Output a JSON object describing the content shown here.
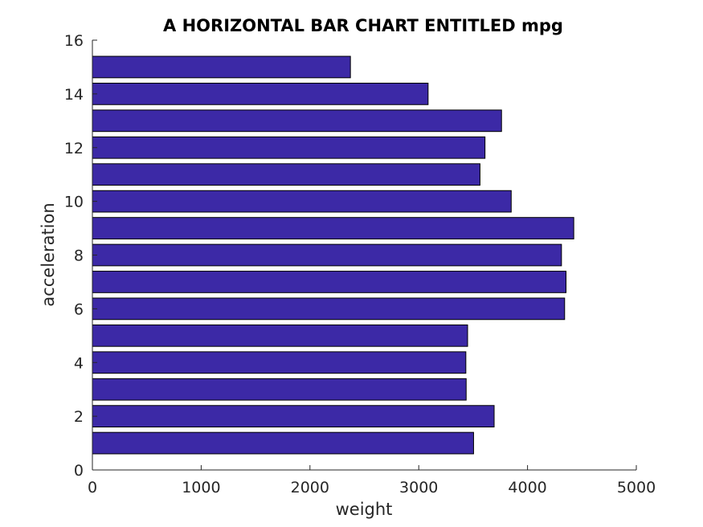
{
  "chart_data": {
    "type": "bar",
    "orientation": "horizontal",
    "title": "A HORIZONTAL BAR CHART ENTITLED mpg",
    "xlabel": "weight",
    "ylabel": "acceleration",
    "xlim": [
      0,
      5000
    ],
    "ylim": [
      0,
      16
    ],
    "x_ticks": [
      0,
      1000,
      2000,
      3000,
      4000,
      5000
    ],
    "y_ticks": [
      0,
      2,
      4,
      6,
      8,
      10,
      12,
      14,
      16
    ],
    "categories": [
      1,
      2,
      3,
      4,
      5,
      6,
      7,
      8,
      9,
      10,
      11,
      12,
      13,
      14,
      15
    ],
    "values": [
      3504,
      3693,
      3436,
      3433,
      3449,
      4341,
      4354,
      4312,
      4425,
      3850,
      3563,
      3609,
      3761,
      3086,
      2372
    ],
    "bar_color": "#3c29a6",
    "bar_edge_color": "#000000",
    "grid": false,
    "legend": "none"
  }
}
